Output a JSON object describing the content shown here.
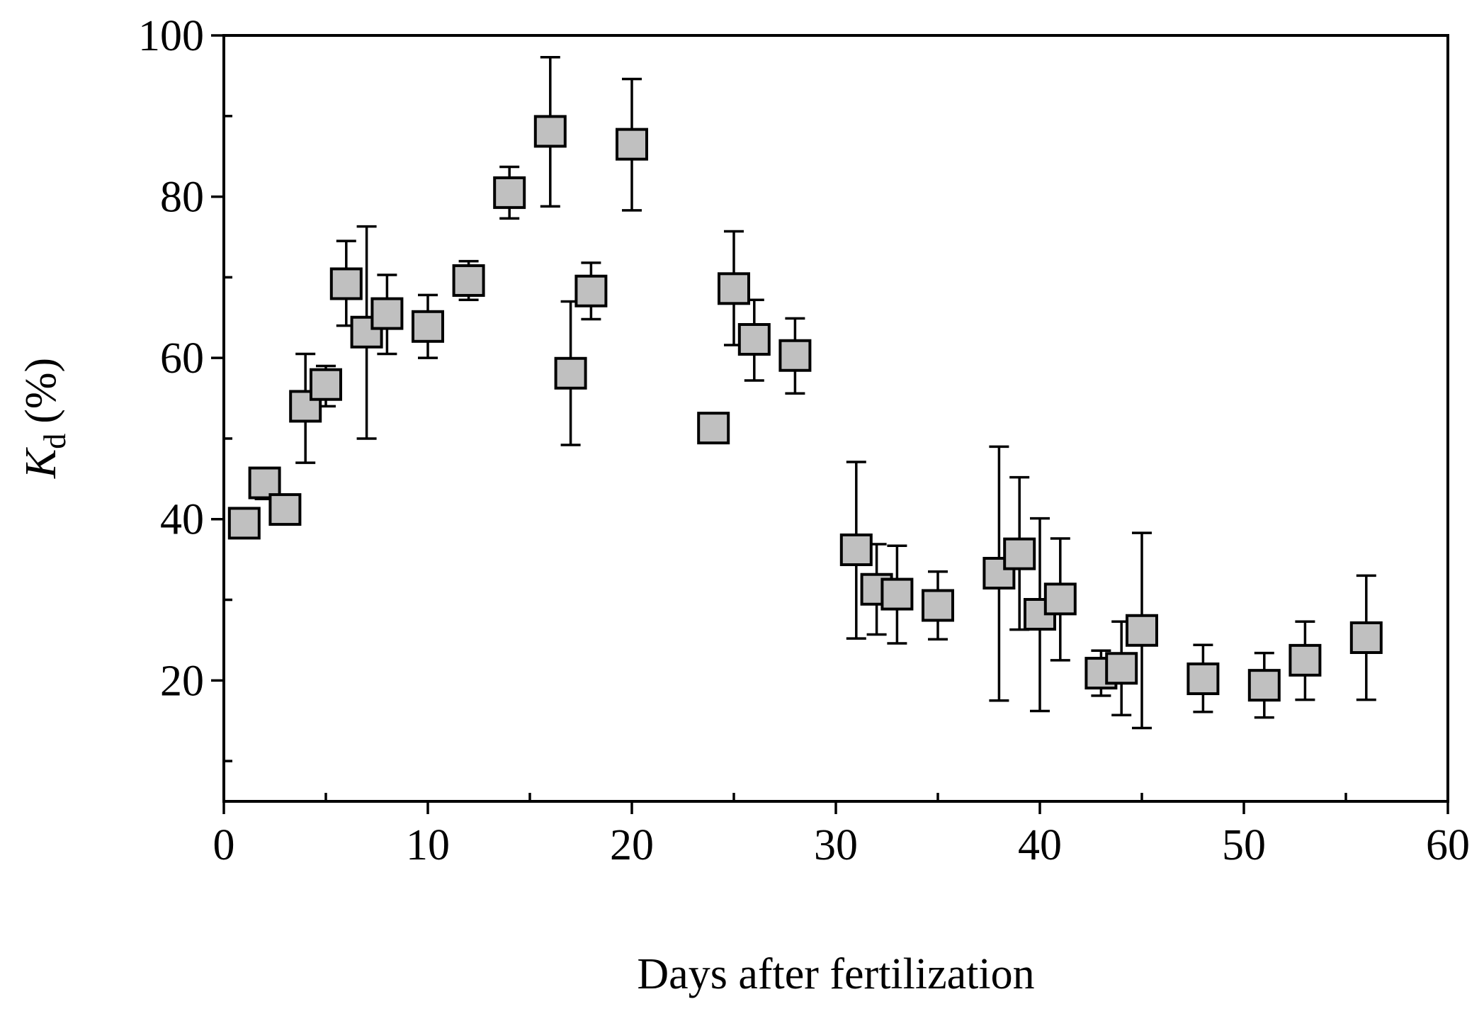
{
  "chart_data": {
    "type": "scatter",
    "title": "",
    "xlabel": "Days after fertilization",
    "ylabel_main": "K",
    "ylabel_sub": "d",
    "ylabel_unit": "(%)",
    "xlim": [
      0,
      60
    ],
    "ylim": [
      5,
      100
    ],
    "xticks": [
      0,
      10,
      20,
      30,
      40,
      50,
      60
    ],
    "yticks": [
      20,
      40,
      60,
      80,
      100
    ],
    "grid": false,
    "legend": "none",
    "marker": "square",
    "marker_color": "#c0c0c0",
    "series": [
      {
        "name": "Kd",
        "points": [
          {
            "x": 1,
            "y": 39.5,
            "lo": 38,
            "hi": 41
          },
          {
            "x": 2,
            "y": 44.5,
            "lo": 42.5,
            "hi": 46
          },
          {
            "x": 3,
            "y": 41.2,
            "lo": 40,
            "hi": 42
          },
          {
            "x": 4,
            "y": 54,
            "lo": 47,
            "hi": 60.5
          },
          {
            "x": 5,
            "y": 56.7,
            "lo": 54,
            "hi": 59
          },
          {
            "x": 6,
            "y": 69.2,
            "lo": 64,
            "hi": 74.5
          },
          {
            "x": 7,
            "y": 63.2,
            "lo": 50,
            "hi": 76.3
          },
          {
            "x": 8,
            "y": 65.5,
            "lo": 60.5,
            "hi": 70.3
          },
          {
            "x": 10,
            "y": 63.9,
            "lo": 60,
            "hi": 67.8
          },
          {
            "x": 12,
            "y": 69.6,
            "lo": 67.2,
            "hi": 72
          },
          {
            "x": 14,
            "y": 80.5,
            "lo": 77.3,
            "hi": 83.7
          },
          {
            "x": 16,
            "y": 88.1,
            "lo": 78.8,
            "hi": 97.3
          },
          {
            "x": 17,
            "y": 58.1,
            "lo": 49.2,
            "hi": 67
          },
          {
            "x": 18,
            "y": 68.3,
            "lo": 64.8,
            "hi": 71.8
          },
          {
            "x": 20,
            "y": 86.5,
            "lo": 78.3,
            "hi": 94.6
          },
          {
            "x": 24,
            "y": 51.3,
            "lo": 49.5,
            "hi": 53
          },
          {
            "x": 25,
            "y": 68.6,
            "lo": 61.6,
            "hi": 75.7
          },
          {
            "x": 26,
            "y": 62.3,
            "lo": 57.2,
            "hi": 67.2
          },
          {
            "x": 28,
            "y": 60.3,
            "lo": 55.6,
            "hi": 64.9
          },
          {
            "x": 31,
            "y": 36.2,
            "lo": 25.2,
            "hi": 47.1
          },
          {
            "x": 32,
            "y": 31.3,
            "lo": 25.7,
            "hi": 36.9
          },
          {
            "x": 33,
            "y": 30.7,
            "lo": 24.6,
            "hi": 36.7
          },
          {
            "x": 35,
            "y": 29.3,
            "lo": 25.1,
            "hi": 33.5
          },
          {
            "x": 38,
            "y": 33.3,
            "lo": 17.5,
            "hi": 49
          },
          {
            "x": 39,
            "y": 35.7,
            "lo": 26.3,
            "hi": 45.2
          },
          {
            "x": 40,
            "y": 28.2,
            "lo": 16.2,
            "hi": 40.1
          },
          {
            "x": 41,
            "y": 30.1,
            "lo": 22.5,
            "hi": 37.6
          },
          {
            "x": 43,
            "y": 20.9,
            "lo": 18.1,
            "hi": 23.7
          },
          {
            "x": 44,
            "y": 21.5,
            "lo": 15.7,
            "hi": 27.3
          },
          {
            "x": 45,
            "y": 26.2,
            "lo": 14.1,
            "hi": 38.3
          },
          {
            "x": 48,
            "y": 20.2,
            "lo": 16.1,
            "hi": 24.4
          },
          {
            "x": 51,
            "y": 19.4,
            "lo": 15.4,
            "hi": 23.4
          },
          {
            "x": 53,
            "y": 22.5,
            "lo": 17.6,
            "hi": 27.3
          },
          {
            "x": 56,
            "y": 25.3,
            "lo": 17.6,
            "hi": 33
          }
        ]
      }
    ]
  }
}
